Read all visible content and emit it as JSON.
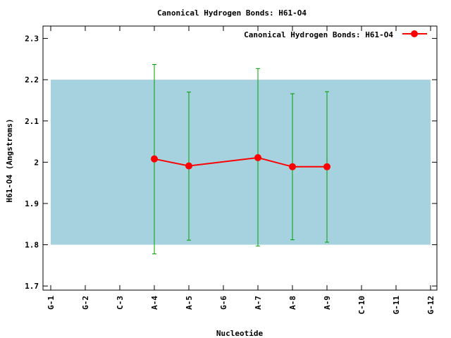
{
  "chart_data": {
    "type": "line",
    "title": "Canonical Hydrogen Bonds: H61-O4",
    "xlabel": "Nucleotide",
    "ylabel": "H61-O4 (Angstroms)",
    "ylim": [
      1.69,
      2.33
    ],
    "yticks": [
      "1.7",
      "1.8",
      "1.9",
      "2",
      "2.1",
      "2.2",
      "2.3"
    ],
    "categories": [
      "G-1",
      "G-2",
      "C-3",
      "A-4",
      "A-5",
      "G-6",
      "A-7",
      "A-8",
      "A-9",
      "C-10",
      "G-11",
      "G-12"
    ],
    "band": {
      "from": 1.8,
      "to": 2.2,
      "color": "#a6d1df"
    },
    "legend_position": "top-right",
    "series": [
      {
        "name": "Canonical Hydrogen Bonds: H61-O4",
        "color": "#ff0000",
        "errorbar_color": "#00a000",
        "points": [
          {
            "x": "A-4",
            "y": 2.008,
            "err_low": 1.778,
            "err_high": 2.237
          },
          {
            "x": "A-5",
            "y": 1.991,
            "err_low": 1.811,
            "err_high": 2.17
          },
          {
            "x": "A-7",
            "y": 2.011,
            "err_low": 1.797,
            "err_high": 2.227
          },
          {
            "x": "A-8",
            "y": 1.989,
            "err_low": 1.812,
            "err_high": 2.166
          },
          {
            "x": "A-9",
            "y": 1.989,
            "err_low": 1.806,
            "err_high": 2.171
          }
        ]
      }
    ]
  }
}
